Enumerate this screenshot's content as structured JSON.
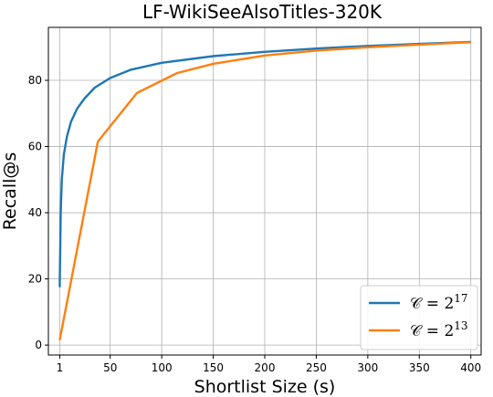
{
  "chart_data": {
    "type": "line",
    "title": "LF-WikiSeeAlsoTitles-320K",
    "xlabel": "Shortlist Size (s)",
    "ylabel": "Recall@s",
    "xlim": [
      -10,
      410
    ],
    "ylim": [
      -3,
      96
    ],
    "xticks": [
      1,
      50,
      100,
      150,
      200,
      250,
      300,
      350,
      400
    ],
    "xtick_labels": [
      "1",
      "50",
      "100",
      "150",
      "200",
      "250",
      "300",
      "350",
      "400"
    ],
    "yticks": [
      0,
      20,
      40,
      60,
      80
    ],
    "ytick_labels": [
      "0",
      "20",
      "40",
      "60",
      "80"
    ],
    "grid": true,
    "legend_position": "lower-right",
    "series": [
      {
        "name": "C = 2^17",
        "legend_base": "𝒞 = 2",
        "legend_exp": "17",
        "color": "#1f77b4",
        "x": [
          1,
          2,
          3,
          5,
          8,
          12,
          18,
          25,
          35,
          50,
          70,
          100,
          150,
          200,
          250,
          300,
          350,
          400
        ],
        "y": [
          17.5,
          40,
          50,
          57.5,
          63,
          67.5,
          71.5,
          74.5,
          77.8,
          80.7,
          83.2,
          85.3,
          87.3,
          88.6,
          89.6,
          90.4,
          91.0,
          91.6
        ]
      },
      {
        "name": "C = 2^13",
        "legend_base": "𝒞 = 2",
        "legend_exp": "13",
        "color": "#ff7f0e",
        "x": [
          1,
          38,
          76,
          115,
          150,
          200,
          250,
          300,
          350,
          400
        ],
        "y": [
          1.5,
          61.5,
          76.2,
          82.2,
          85.0,
          87.5,
          89.0,
          90.0,
          90.8,
          91.5
        ]
      }
    ]
  }
}
